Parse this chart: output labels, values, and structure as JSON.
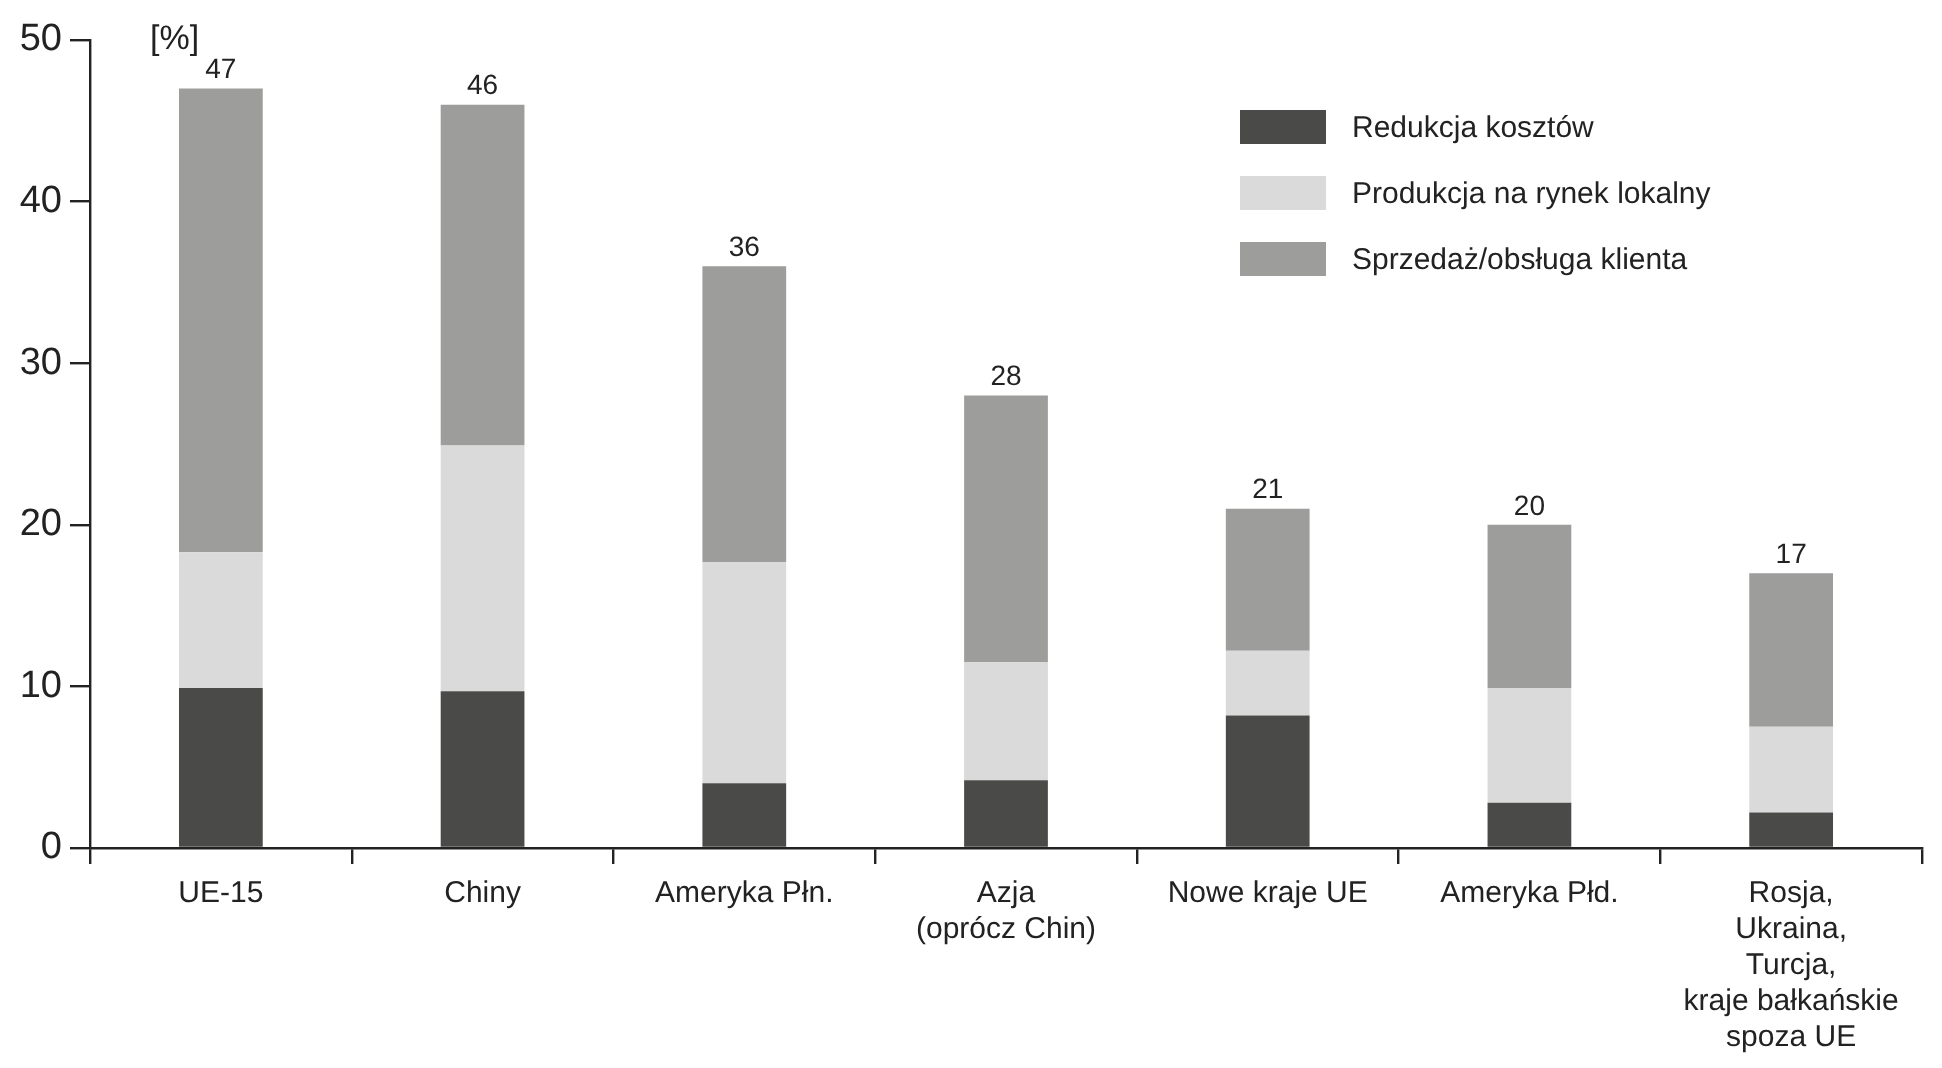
{
  "chart_data": {
    "type": "bar",
    "stacked": true,
    "ylabel": "[%]",
    "categories": [
      "UE-15",
      "Chiny",
      "Ameryka Płn.",
      "Azja\n(oprócz Chin)",
      "Nowe kraje UE",
      "Ameryka Płd.",
      "Rosja,\nUkraina,\nTurcja,\nkraje bałkańskie\nspoza UE"
    ],
    "series": [
      {
        "name": "Redukcja kosztów",
        "color": "#4a4a48",
        "values": [
          9.9,
          9.7,
          4.0,
          4.2,
          8.2,
          2.8,
          2.2
        ]
      },
      {
        "name": "Produkcja na rynek lokalny",
        "color": "#dadada",
        "values": [
          8.4,
          15.2,
          13.7,
          7.3,
          4.0,
          7.1,
          5.3
        ]
      },
      {
        "name": "Sprzedaż/obsługa klienta",
        "color": "#9d9d9c",
        "values": [
          28.7,
          21.1,
          18.3,
          16.5,
          8.8,
          10.1,
          9.5
        ]
      }
    ],
    "totals": [
      "47",
      "46",
      "36",
      "28",
      "21",
      "20",
      "17"
    ],
    "ylim": [
      0,
      50
    ],
    "yticks": [
      0,
      10,
      20,
      30,
      40,
      50
    ],
    "grid": false,
    "legend": "top right"
  }
}
